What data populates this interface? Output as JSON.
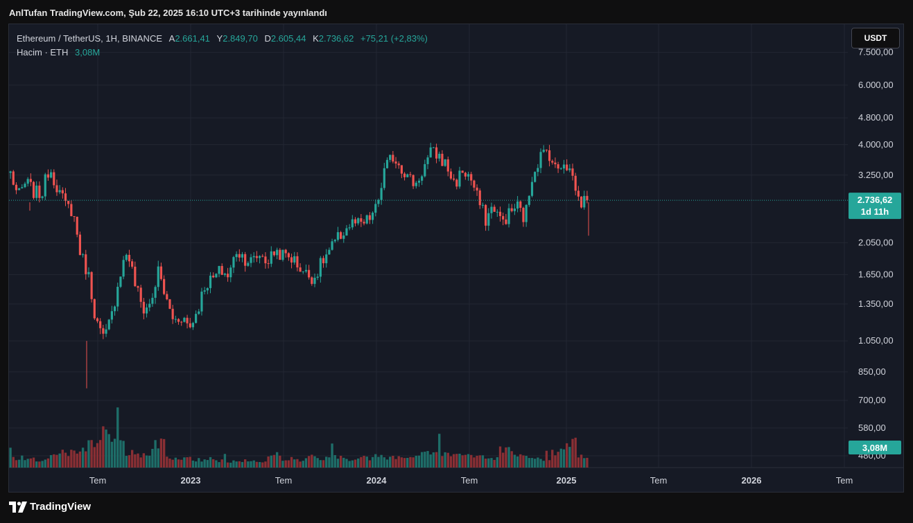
{
  "caption": "AnlTufan TradingView.com, Şub 22, 2025 16:10 UTC+3 tarihinde yayınlandı",
  "legend": {
    "symbol": "Ethereum / TetherUS, 1H, BINANCE",
    "open_label": "A",
    "open": "2.661,41",
    "high_label": "Y",
    "high": "2.849,70",
    "low_label": "D",
    "low": "2.605,44",
    "close_label": "K",
    "close": "2.736,62",
    "change": "+75,21 (+2,83%)",
    "volume_label": "Hacim · ETH",
    "volume": "3,08M"
  },
  "currency_button": "USDT",
  "footer_brand": "TradingView",
  "colors": {
    "background": "#161a25",
    "grid": "#232733",
    "up": "#26a69a",
    "down": "#ef5350",
    "volume_up": "#1e6e69",
    "volume_down": "#8a2f34",
    "last_price_badge": "#26a69a"
  },
  "chart_data": {
    "type": "candlestick",
    "scale": "log",
    "y_ticks": [
      "7.500,00",
      "6.000,00",
      "4.800,00",
      "4.000,00",
      "3.250,00",
      "2.050,00",
      "1.650,00",
      "1.350,00",
      "1.050,00",
      "850,00",
      "700,00",
      "580,00",
      "480,00"
    ],
    "y_tick_values": [
      7500,
      6000,
      4800,
      4000,
      3250,
      2050,
      1650,
      1350,
      1050,
      850,
      700,
      580,
      480
    ],
    "x_ticks": [
      "Tem",
      "2023",
      "Tem",
      "2024",
      "Tem",
      "2025",
      "Tem",
      "2026",
      "Tem"
    ],
    "x_tick_bold": [
      false,
      true,
      false,
      true,
      false,
      true,
      false,
      true,
      false
    ],
    "last_price_label": "2.736,62",
    "countdown_label": "1d 11h",
    "volume_label": "3,08M",
    "last_price": 2736.62,
    "price_path": [
      3300,
      2800,
      3100,
      2900,
      2850,
      3450,
      3000,
      2650,
      2550,
      1900,
      1650,
      1200,
      1050,
      1250,
      1650,
      1950,
      1550,
      1300,
      1350,
      1700,
      1380,
      1200,
      1250,
      1150,
      1300,
      1550,
      1600,
      1700,
      1630,
      1950,
      1850,
      1800,
      1900,
      1800,
      1950,
      1880,
      1860,
      1750,
      1650,
      1620,
      1800,
      1950,
      2100,
      2250,
      2350,
      2300,
      2400,
      2600,
      3350,
      3700,
      3500,
      3200,
      3050,
      3400,
      3800,
      3700,
      3450,
      3050,
      3350,
      3200,
      2750,
      2400,
      2650,
      2350,
      2500,
      2650,
      2400,
      3300,
      3700,
      3850,
      3350,
      3600,
      3300,
      2700,
      2736.62
    ],
    "wick_spikes": [
      [
        1.3,
        0.9,
        820
      ],
      [
        1.95,
        0.16,
        1050
      ],
      [
        2.95,
        0.7,
        2150
      ]
    ],
    "volume_mults": [
      1.0,
      0.9,
      0.8,
      1.2,
      1.5,
      1.8,
      2.8,
      3.5,
      2.6,
      1.6,
      1.2,
      2.4,
      1.0,
      0.9,
      0.8,
      1.0,
      0.7,
      0.6,
      0.7,
      0.6,
      1.3,
      0.9,
      0.8,
      1.1,
      1.0,
      1.1,
      0.9,
      1.0,
      1.2,
      1.0,
      1.1,
      1.3,
      1.6,
      1.4,
      1.5,
      1.3,
      1.2,
      1.0,
      1.8,
      1.4,
      1.1,
      0.9,
      1.6,
      2.8,
      1.2
    ]
  }
}
